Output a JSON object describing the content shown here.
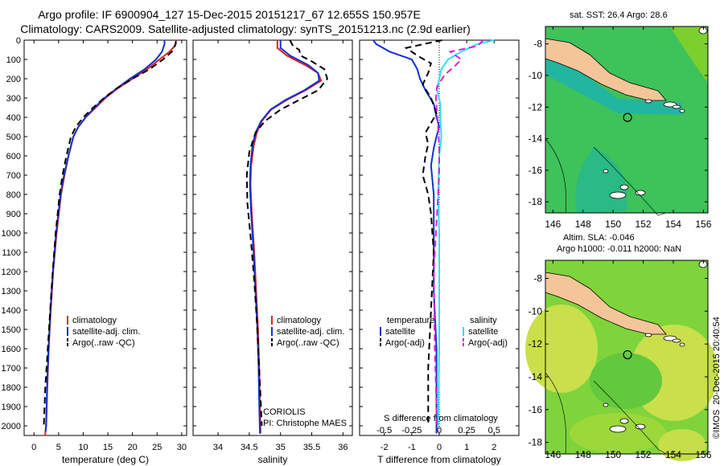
{
  "header": {
    "title_line1": "Argo profile: IF 6900904_127 15-Dec-2015 20151217_67 12.655S 150.957E",
    "title_line2": "Climatology: CARS2009. Satellite-adjusted climatology: synTS_20151213.nc (2.9d earlier)"
  },
  "colors": {
    "climatology": "#e02020",
    "satellite": "#1030d0",
    "argo": "#000000",
    "sal_satellite": "#30e0f0",
    "sal_argo": "#e020d0",
    "land": "#f5c59a"
  },
  "chart_data": [
    {
      "type": "line",
      "id": "temperature",
      "xlabel": "temperature (deg C)",
      "xlim": [
        -2,
        31
      ],
      "xticks": [
        0,
        5,
        10,
        15,
        20,
        25,
        30
      ],
      "ylim": [
        0,
        2050
      ],
      "yticks": [
        0,
        100,
        200,
        300,
        400,
        500,
        600,
        700,
        800,
        900,
        1000,
        1100,
        1200,
        1300,
        1400,
        1500,
        1600,
        1700,
        1800,
        1900,
        2000
      ],
      "legend": [
        "climatology",
        "satellite-adj. clim.",
        "Argo(..raw -QC)"
      ],
      "series": [
        {
          "name": "climatology",
          "x": [
            28.9,
            28.6,
            27.5,
            25.5,
            23,
            20,
            17,
            14.5,
            12.5,
            10.5,
            9,
            8,
            7,
            6.2,
            5.5,
            4.6,
            3.9,
            3.4,
            3,
            2.7,
            2.5,
            2.3,
            2.3
          ],
          "y": [
            0,
            30,
            60,
            100,
            150,
            200,
            250,
            300,
            350,
            400,
            450,
            500,
            600,
            700,
            800,
            1000,
            1200,
            1400,
            1600,
            1800,
            2000,
            2040,
            2050
          ]
        },
        {
          "name": "satellite-adj. clim.",
          "x": [
            26.5,
            26.5,
            26,
            24.8,
            22.5,
            19.5,
            16.8,
            14.3,
            12.3,
            10.5,
            9,
            8,
            7,
            6.1,
            5.4,
            4.5,
            3.85,
            3.35,
            2.95,
            2.65,
            2.45,
            2.35
          ],
          "y": [
            0,
            20,
            60,
            100,
            150,
            200,
            250,
            300,
            350,
            400,
            450,
            500,
            600,
            700,
            800,
            1000,
            1200,
            1400,
            1600,
            1800,
            2000,
            2030
          ]
        },
        {
          "name": "Argo(..raw -QC)",
          "x": [
            28.8,
            28.8,
            28,
            26.2,
            23.5,
            20,
            16.8,
            14.2,
            12,
            10,
            8.5,
            7.5,
            6.6,
            5.8,
            5.2,
            4.4,
            3.8,
            3.3,
            2.8,
            2.3,
            2
          ],
          "y": [
            5,
            20,
            60,
            100,
            150,
            200,
            250,
            300,
            350,
            400,
            450,
            500,
            600,
            700,
            800,
            1000,
            1200,
            1400,
            1600,
            1800,
            2000
          ]
        }
      ]
    },
    {
      "type": "line",
      "id": "salinity",
      "xlabel": "salinity",
      "xlim": [
        33.6,
        36.15
      ],
      "xticks": [
        34,
        34.5,
        35,
        35.5,
        36
      ],
      "ylim": [
        0,
        2050
      ],
      "legend": [
        "climatology",
        "satellite-adj. clim.",
        "Argo(..raw -QC)"
      ],
      "annotation": [
        "CORIOLIS",
        "PI: Christophe MAES"
      ],
      "series": [
        {
          "name": "climatology",
          "x": [
            34.95,
            34.95,
            35.1,
            35.4,
            35.6,
            35.65,
            35.4,
            35.1,
            34.85,
            34.7,
            34.62,
            34.57,
            34.53,
            34.52,
            34.54,
            34.58,
            34.61,
            34.64,
            34.66,
            34.67,
            34.68
          ],
          "y": [
            0,
            40,
            80,
            130,
            170,
            210,
            260,
            310,
            360,
            420,
            480,
            550,
            650,
            750,
            900,
            1100,
            1300,
            1500,
            1700,
            1900,
            2040
          ]
        },
        {
          "name": "satellite-adj. clim.",
          "x": [
            35.0,
            35.0,
            35.15,
            35.45,
            35.6,
            35.62,
            35.38,
            35.08,
            34.84,
            34.69,
            34.6,
            34.55,
            34.52,
            34.51,
            34.53,
            34.57,
            34.6,
            34.63,
            34.65,
            34.66,
            34.67
          ],
          "y": [
            0,
            40,
            80,
            130,
            170,
            210,
            260,
            310,
            360,
            420,
            480,
            550,
            650,
            750,
            900,
            1100,
            1300,
            1500,
            1700,
            1900,
            2040
          ]
        },
        {
          "name": "Argo(..raw -QC)",
          "x": [
            35.15,
            35.2,
            35.3,
            35.32,
            35.5,
            35.7,
            35.75,
            35.6,
            35.3,
            35.0,
            34.75,
            34.6,
            34.5,
            34.46,
            34.47,
            34.53,
            34.58,
            34.62,
            34.65,
            34.68,
            34.7
          ],
          "y": [
            0,
            30,
            50,
            80,
            110,
            150,
            200,
            260,
            310,
            360,
            420,
            480,
            580,
            700,
            850,
            1050,
            1250,
            1450,
            1650,
            1850,
            2000
          ]
        }
      ]
    },
    {
      "type": "line",
      "id": "differences",
      "xlabel": "T difference from climatology",
      "xlabel_top": "S difference from climatology",
      "xlim_T": [
        -2.9,
        2.9
      ],
      "xticks_T": [
        -2,
        -1,
        0,
        1,
        2
      ],
      "xticks_S": [
        -0.5,
        -0.25,
        0,
        0.25,
        0.5
      ],
      "ylim": [
        0,
        2050
      ],
      "legend": {
        "temperature": [
          "temperature",
          "satellite",
          "Argo(-adj)"
        ],
        "salinity": [
          "salinity",
          "satellite",
          "Argo(-adj)"
        ]
      },
      "series": [
        {
          "name": "satellite",
          "quantity": "temperature",
          "x": [
            -2.4,
            -2.3,
            -1.8,
            -1,
            -0.8,
            -0.7,
            -0.5,
            -0.2,
            -0.1,
            0,
            -0.1,
            -0.2,
            -0.3,
            -0.2,
            -0.2,
            -0.2,
            -0.1,
            -0.1,
            -0.1
          ],
          "y": [
            0,
            20,
            60,
            100,
            150,
            200,
            260,
            330,
            400,
            450,
            500,
            560,
            650,
            800,
            1000,
            1300,
            1600,
            1900,
            2040
          ]
        },
        {
          "name": "Argo(-adj)",
          "quantity": "temperature",
          "x": [
            0.1,
            -1.2,
            -0.8,
            -0.3,
            -0.4,
            -0.6,
            -0.3,
            -0.1,
            -0.3,
            -0.5,
            -0.4,
            -0.5,
            -0.6,
            -0.4,
            -0.3,
            -0.2,
            -0.3,
            -0.4,
            -0.4
          ],
          "y": [
            0,
            40,
            80,
            120,
            170,
            230,
            300,
            380,
            430,
            480,
            540,
            600,
            700,
            800,
            900,
            1100,
            1400,
            1700,
            2000
          ]
        },
        {
          "name": "satellite",
          "quantity": "salinity",
          "x": [
            0.5,
            0.35,
            0.2,
            0.08,
            0.02,
            0,
            -0.02,
            0.01,
            0.01,
            0.02,
            0,
            -0.01,
            0,
            0,
            0,
            -0.01
          ],
          "y": [
            0,
            20,
            60,
            100,
            150,
            200,
            260,
            330,
            400,
            500,
            600,
            800,
            1000,
            1300,
            1600,
            2000
          ]
        },
        {
          "name": "Argo(-adj)",
          "quantity": "salinity",
          "x": [
            0.4,
            0.35,
            0.1,
            0.2,
            0.15,
            0.05,
            -0.02,
            -0.03,
            -0.02,
            -0.01,
            0,
            0,
            -0.02,
            -0.05,
            -0.04,
            -0.02
          ],
          "y": [
            0,
            30,
            60,
            100,
            130,
            180,
            240,
            300,
            380,
            450,
            550,
            700,
            900,
            1200,
            1600,
            2000
          ]
        }
      ]
    }
  ],
  "maps": [
    {
      "title": "sat. SST: 26.4 Argo: 28.6",
      "xticks": [
        146,
        148,
        150,
        152,
        154,
        156
      ],
      "yticks": [
        -8,
        -10,
        -12,
        -14,
        -16,
        -18
      ],
      "xlim": [
        145.5,
        156.3
      ],
      "ylim": [
        -18.7,
        -6.9
      ],
      "marker": [
        150.957,
        -12.655
      ]
    },
    {
      "title_line1": "Altim. SLA: -0.046",
      "title_line2": "Argo h1000: -0.011 h2000: NaN",
      "xticks": [
        146,
        148,
        150,
        152,
        154,
        156
      ],
      "yticks": [
        -8,
        -10,
        -12,
        -14,
        -16,
        -18
      ],
      "xlim": [
        145.5,
        156.3
      ],
      "ylim": [
        -18.7,
        -6.9
      ],
      "marker": [
        150.957,
        -12.655
      ]
    }
  ],
  "credit": {
    "org": "©IMOS",
    "date": "20-Dec-2015 20:40:54"
  }
}
